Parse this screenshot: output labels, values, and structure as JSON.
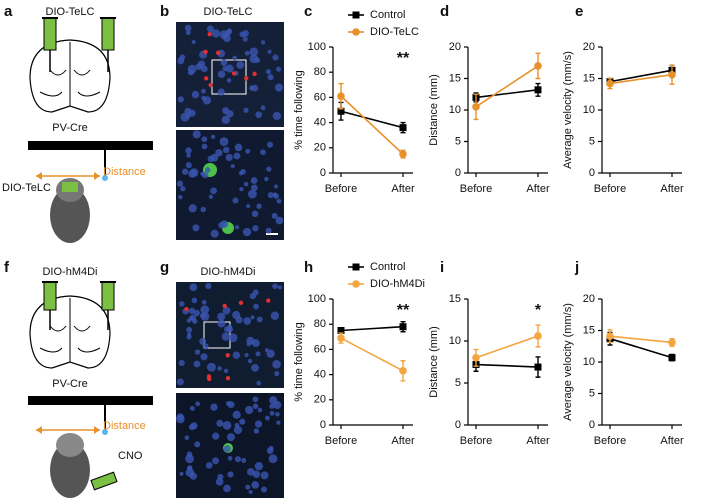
{
  "figure": {
    "panels": [
      "a",
      "b",
      "c",
      "d",
      "e",
      "f",
      "g",
      "h",
      "i",
      "j"
    ],
    "a": {
      "top": "DIO-TeLC",
      "middle": "PV-Cre",
      "distance": "Distance",
      "mouse": "DIO-TeLC"
    },
    "b": {
      "title": "DIO-TeLC"
    },
    "f": {
      "top": "DIO-hM4Di",
      "middle": "PV-Cre",
      "distance": "Distance",
      "drug": "CNO"
    },
    "g": {
      "title": "DIO-hM4Di"
    }
  },
  "chart_data": [
    {
      "type": "line",
      "ylabel": "% time following",
      "categories": [
        "Before",
        "After"
      ],
      "ylim": [
        0,
        100
      ],
      "yticks": [
        0,
        20,
        40,
        60,
        80,
        100
      ],
      "legend": "top",
      "annotation": "**",
      "series": [
        {
          "name": "Control",
          "color": "#000000",
          "marker": "square",
          "values": [
            49,
            36
          ],
          "errors": [
            7,
            4
          ]
        },
        {
          "name": "DIO-TeLC",
          "color": "#e8902a",
          "marker": "circle",
          "values": [
            61,
            15
          ],
          "errors": [
            10,
            3
          ]
        }
      ]
    },
    {
      "type": "line",
      "ylabel": "Distance (mm)",
      "categories": [
        "Before",
        "After"
      ],
      "ylim": [
        0,
        20
      ],
      "yticks": [
        0,
        5,
        10,
        15,
        20
      ],
      "series": [
        {
          "color": "#000000",
          "marker": "square",
          "values": [
            12,
            13.2
          ],
          "errors": [
            0.7,
            1
          ]
        },
        {
          "color": "#e8902a",
          "marker": "circle",
          "values": [
            10.5,
            17
          ],
          "errors": [
            2,
            2
          ]
        }
      ]
    },
    {
      "type": "line",
      "ylabel": "Average velocity (mm/s)",
      "categories": [
        "Before",
        "After"
      ],
      "ylim": [
        0,
        20
      ],
      "yticks": [
        0,
        5,
        10,
        15,
        20
      ],
      "series": [
        {
          "color": "#000000",
          "marker": "square",
          "values": [
            14.5,
            16.3
          ],
          "errors": [
            0.5,
            0.8
          ]
        },
        {
          "color": "#e8902a",
          "marker": "circle",
          "values": [
            14.2,
            15.6
          ],
          "errors": [
            0.8,
            1.5
          ]
        }
      ]
    },
    {
      "type": "line",
      "ylabel": "% time following",
      "categories": [
        "Before",
        "After"
      ],
      "ylim": [
        0,
        100
      ],
      "yticks": [
        0,
        20,
        40,
        60,
        80,
        100
      ],
      "legend": "top",
      "annotation": "**",
      "series": [
        {
          "name": "Control",
          "color": "#000000",
          "marker": "square",
          "values": [
            75,
            78
          ],
          "errors": [
            2,
            4
          ]
        },
        {
          "name": "DIO-hM4Di",
          "color": "#f2a540",
          "marker": "circle",
          "values": [
            69,
            43
          ],
          "errors": [
            4,
            8
          ]
        }
      ]
    },
    {
      "type": "line",
      "ylabel": "Distance (mm)",
      "categories": [
        "Before",
        "After"
      ],
      "ylim": [
        0,
        15
      ],
      "yticks": [
        0,
        5,
        10,
        15
      ],
      "annotation": "*",
      "series": [
        {
          "color": "#000000",
          "marker": "square",
          "values": [
            7.2,
            6.9
          ],
          "errors": [
            0.8,
            1.2
          ]
        },
        {
          "color": "#f2a540",
          "marker": "circle",
          "values": [
            8,
            10.6
          ],
          "errors": [
            1,
            1.3
          ]
        }
      ]
    },
    {
      "type": "line",
      "ylabel": "Average velocity (mm/s)",
      "categories": [
        "Before",
        "After"
      ],
      "ylim": [
        0,
        20
      ],
      "yticks": [
        0,
        5,
        10,
        15,
        20
      ],
      "series": [
        {
          "color": "#000000",
          "marker": "square",
          "values": [
            13.7,
            10.7
          ],
          "errors": [
            1,
            0.5
          ]
        },
        {
          "color": "#f2a540",
          "marker": "circle",
          "values": [
            14.1,
            13.1
          ],
          "errors": [
            1,
            0.6
          ]
        }
      ]
    }
  ]
}
